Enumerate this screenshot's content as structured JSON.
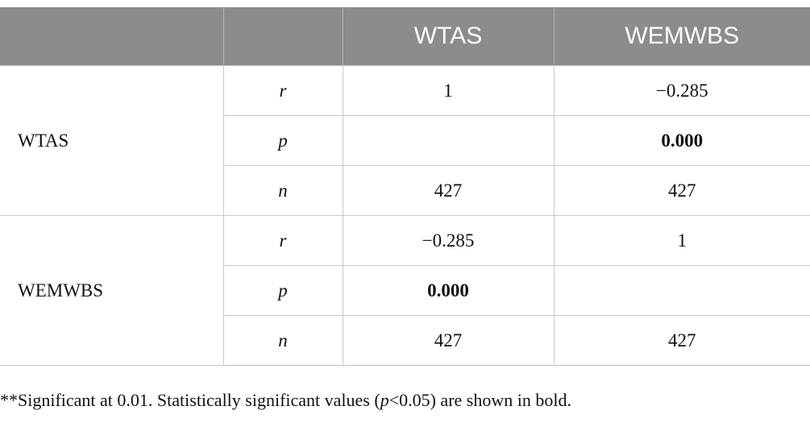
{
  "table": {
    "header": [
      "",
      "",
      "WTAS",
      "WEMWBS"
    ],
    "groups": [
      {
        "label": "WTAS",
        "rows": [
          {
            "stat": "r",
            "WTAS": "1",
            "WEMWBS": "−0.285"
          },
          {
            "stat": "p",
            "WTAS": "",
            "WEMWBS": "0.000"
          },
          {
            "stat": "n",
            "WTAS": "427",
            "WEMWBS": "427"
          }
        ]
      },
      {
        "label": "WEMWBS",
        "rows": [
          {
            "stat": "r",
            "WTAS": "−0.285",
            "WEMWBS": "1"
          },
          {
            "stat": "p",
            "WTAS": "0.000",
            "WEMWBS": ""
          },
          {
            "stat": "n",
            "WTAS": "427",
            "WEMWBS": "427"
          }
        ]
      }
    ]
  },
  "footnote": {
    "prefix": "**Significant at 0.01. Statistically significant values (",
    "italic": "p",
    "suffix": "<0.05) are shown in bold."
  }
}
